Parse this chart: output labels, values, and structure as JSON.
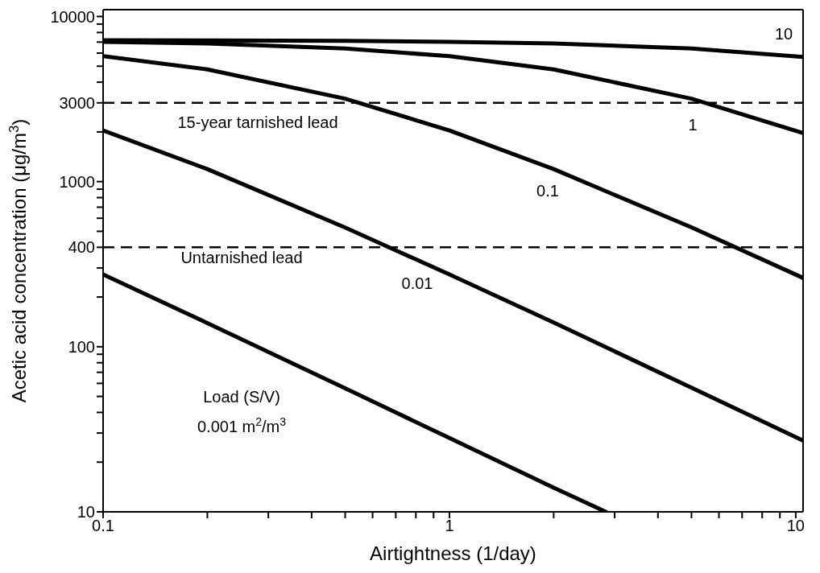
{
  "chart_data": {
    "type": "line",
    "xlabel": "Airtightness (1/day)",
    "ylabel": "Acetic acid concentration (μg/m$^{3}$)",
    "log": "xy",
    "xlim": [
      0.1,
      10.5
    ],
    "ylim": [
      10,
      11000
    ],
    "xticks": [
      0.1,
      {
        "value": 0.2,
        "label": null
      },
      {
        "value": 0.3,
        "label": null
      },
      {
        "value": 0.4,
        "label": null
      },
      {
        "value": 0.5,
        "label": null
      },
      {
        "value": 0.6,
        "label": null
      },
      {
        "value": 0.7,
        "label": null
      },
      {
        "value": 0.8,
        "label": null
      },
      {
        "value": 0.9,
        "label": null
      },
      1,
      {
        "value": 2,
        "label": null
      },
      {
        "value": 3,
        "label": null
      },
      {
        "value": 4,
        "label": null
      },
      {
        "value": 5,
        "label": null
      },
      {
        "value": 6,
        "label": null
      },
      {
        "value": 7,
        "label": null
      },
      {
        "value": 8,
        "label": null
      },
      {
        "value": 9,
        "label": null
      },
      10
    ],
    "yticks": [
      10,
      {
        "value": 20,
        "label": null
      },
      {
        "value": 30,
        "label": null
      },
      {
        "value": 40,
        "label": null
      },
      {
        "value": 50,
        "label": null
      },
      {
        "value": 60,
        "label": null
      },
      {
        "value": 70,
        "label": null
      },
      {
        "value": 80,
        "label": null
      },
      {
        "value": 90,
        "label": null
      },
      100,
      {
        "value": 200,
        "label": null
      },
      {
        "value": 300,
        "label": null
      },
      400,
      {
        "value": 500,
        "label": null
      },
      {
        "value": 600,
        "label": null
      },
      {
        "value": 700,
        "label": null
      },
      {
        "value": 800,
        "label": null
      },
      {
        "value": 900,
        "label": null
      },
      1000,
      {
        "value": 2000,
        "label": null
      },
      3000,
      {
        "value": 4000,
        "label": null
      },
      {
        "value": 5000,
        "label": null
      },
      {
        "value": 6000,
        "label": null
      },
      {
        "value": 7000,
        "label": null
      },
      {
        "value": 8000,
        "label": null
      },
      {
        "value": 9000,
        "label": null
      },
      10000
    ],
    "marker": "none",
    "line_style": "solid",
    "series": [
      {
        "name": "10",
        "color": "#000000",
        "x": [
          0.1,
          0.2,
          0.5,
          1,
          2,
          5,
          10.5
        ],
        "values": [
          7190,
          7170,
          7120,
          7030,
          6860,
          6400,
          5690
        ]
      },
      {
        "name": "1",
        "color": "#000000",
        "x": [
          0.1,
          0.2,
          0.5,
          1,
          2,
          5,
          10.5
        ],
        "values": [
          7030,
          6860,
          6400,
          5750,
          4780,
          3180,
          1970
        ]
      },
      {
        "name": "0.1",
        "color": "#000000",
        "x": [
          0.1,
          0.2,
          0.5,
          1,
          2,
          5,
          10.5
        ],
        "values": [
          5750,
          4780,
          3180,
          2040,
          1190,
          528,
          261
        ]
      },
      {
        "name": "0.01",
        "color": "#000000",
        "x": [
          0.1,
          0.2,
          0.5,
          1,
          2,
          5,
          10.5
        ],
        "values": [
          2040,
          1190,
          527,
          274,
          140,
          56.5,
          27
        ]
      },
      {
        "color": "#000000",
        "x": [
          0.1,
          0.2,
          0.5,
          1,
          2,
          2.83
        ],
        "values": [
          274,
          139,
          56,
          28,
          14,
          10
        ]
      }
    ],
    "ref_lines": [
      {
        "axis": "y",
        "value": 3000,
        "line_style": "dashed",
        "color": "#000000"
      },
      {
        "axis": "y",
        "value": 400,
        "line_style": "dashed",
        "color": "#000000"
      }
    ],
    "annotations": [
      "Load (S/V)",
      "0.001 m$^{2}$/m$^{3}$",
      "15-year tarnished lead",
      "Untarnished lead"
    ]
  }
}
